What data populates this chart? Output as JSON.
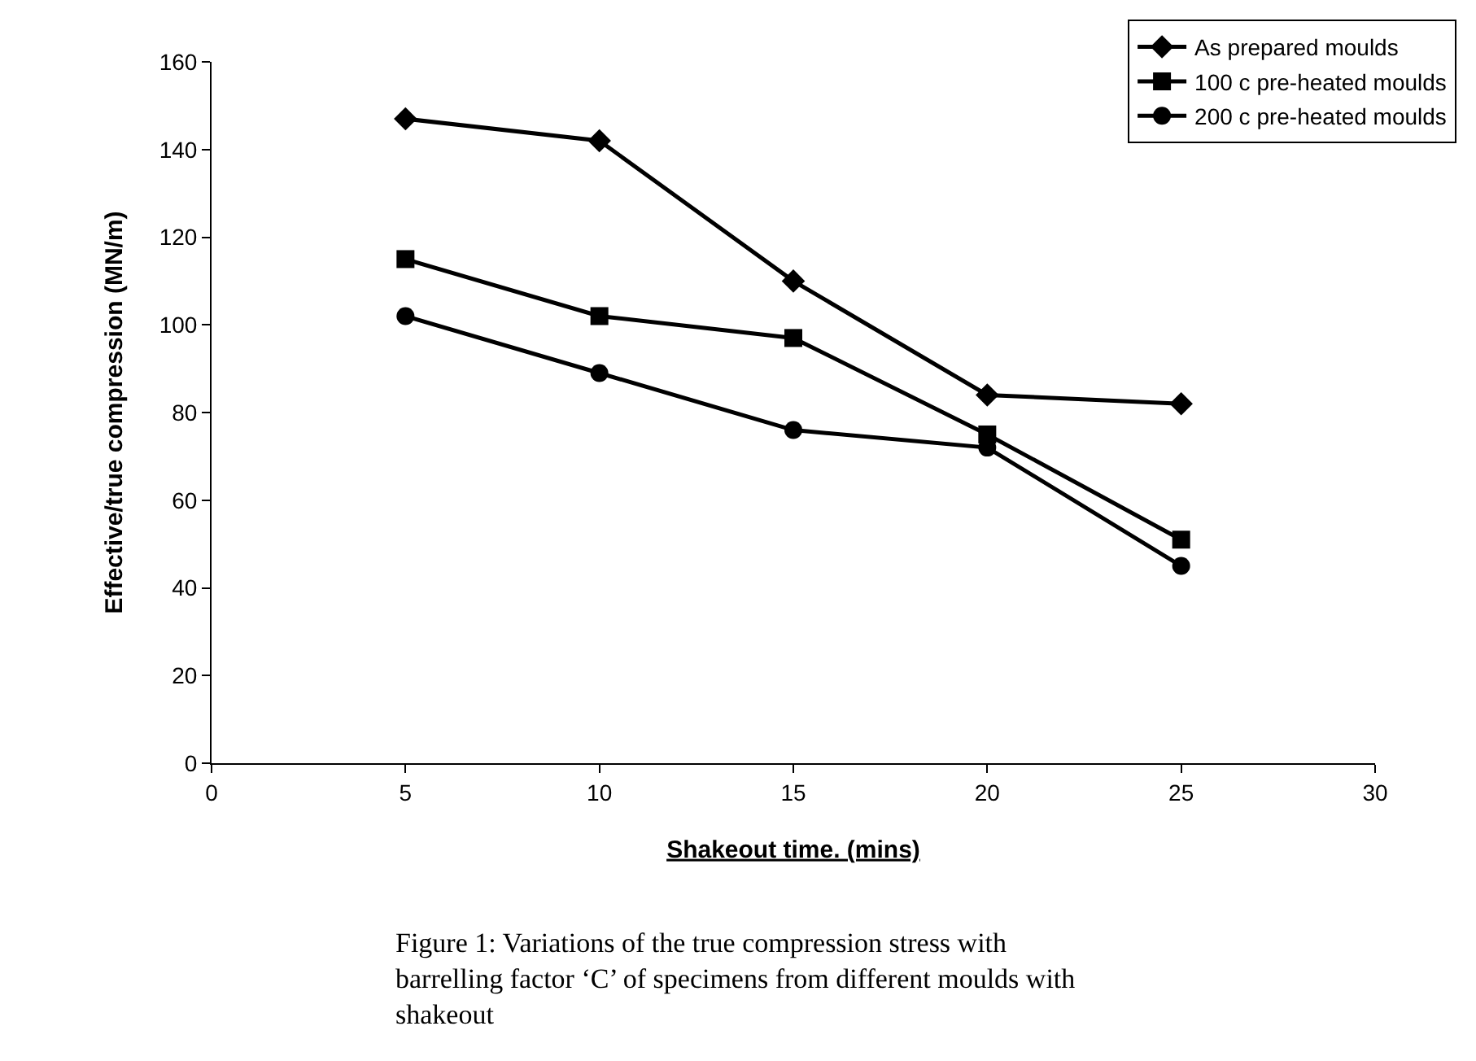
{
  "chart_data": {
    "type": "line",
    "xlabel": "Shakeout time. (mins)",
    "ylabel": "Effective/true compression (MN/m)",
    "x": [
      5,
      10,
      15,
      20,
      25
    ],
    "series": [
      {
        "name": "As prepared moulds",
        "color": "#000000",
        "marker": "diamond",
        "values": [
          147,
          142,
          110,
          84,
          82
        ]
      },
      {
        "name": "100 c pre-heated moulds",
        "color": "#000000",
        "marker": "square",
        "values": [
          115,
          102,
          97,
          75,
          51
        ]
      },
      {
        "name": "200 c pre-heated moulds",
        "color": "#000000",
        "marker": "circle",
        "values": [
          102,
          89,
          76,
          72,
          45
        ]
      }
    ],
    "xlim": [
      0,
      30
    ],
    "xticks": [
      0,
      5,
      10,
      15,
      20,
      25,
      30
    ],
    "ylim": [
      0,
      160
    ],
    "yticks": [
      0,
      20,
      40,
      60,
      80,
      100,
      120,
      140,
      160
    ],
    "legend": "top right",
    "line_style": "solid",
    "annotations": [
      "Figure 1: Variations of the true compression stress with barrelling factor ‘C’ of specimens from different moulds with shakeout"
    ]
  }
}
